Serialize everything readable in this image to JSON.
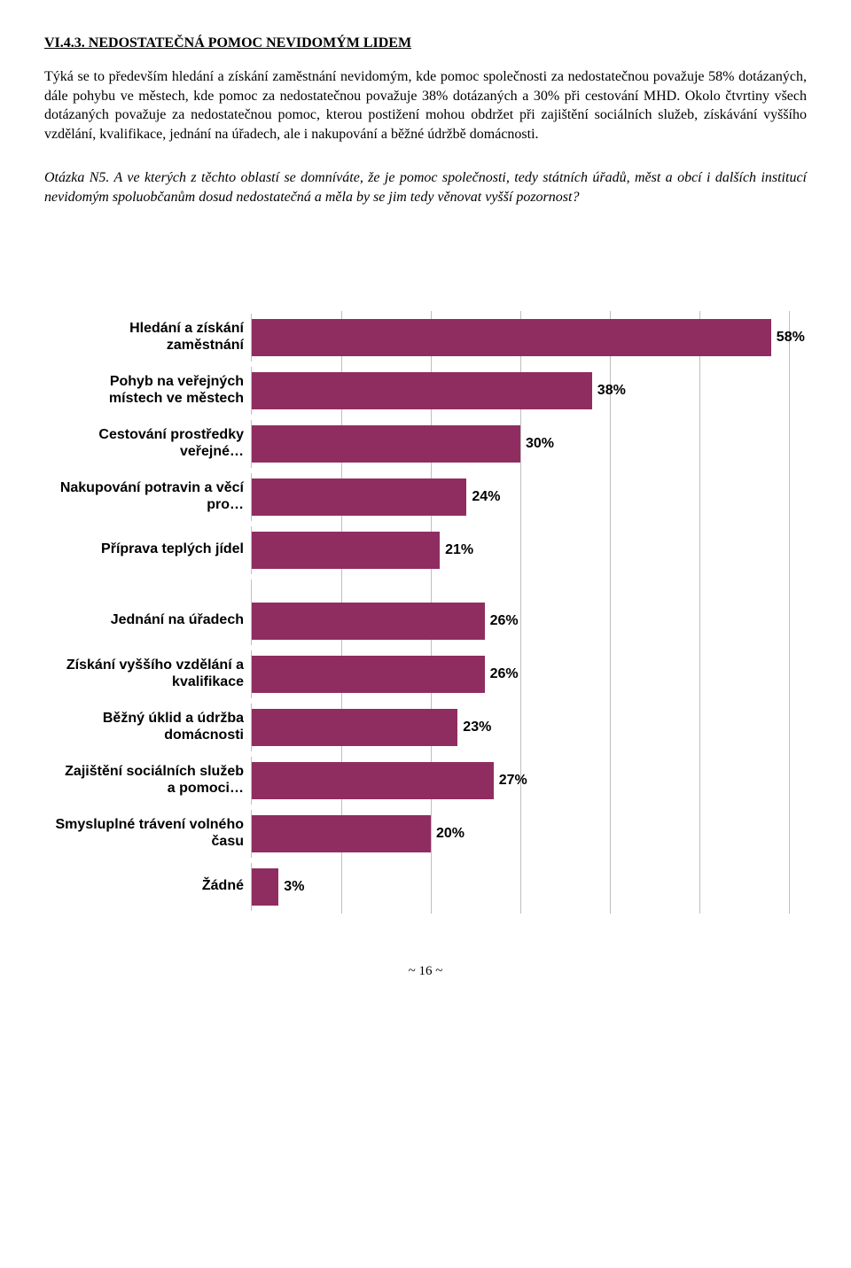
{
  "section": {
    "title": "VI.4.3. NEDOSTATEČNÁ POMOC NEVIDOMÝM LIDEM",
    "body": "Týká se to především hledání a získání zaměstnání nevidomým, kde pomoc společnosti za nedostatečnou považuje 58% dotázaných, dále pohybu ve městech, kde pomoc za nedostatečnou považuje 38% dotázaných a 30% při cestování MHD. Okolo čtvrtiny všech dotázaných považuje za nedostatečnou pomoc, kterou postižení mohou obdržet při zajištění sociálních služeb, získávání vyššího vzdělání, kvalifikace, jednání na úřadech, ale i nakupování a běžné údržbě domácnosti.",
    "question": "Otázka N5. A ve kterých z těchto oblastí se domníváte, že je pomoc společnosti, tedy státních úřadů, měst a obcí i dalších institucí nevidomým spoluobčanům dosud nedostatečná a měla by se jim tedy věnovat vyšší pozornost?"
  },
  "chart": {
    "type": "bar",
    "bar_color": "#8f2d61",
    "grid_color": "#bfbfbf",
    "background_color": "#ffffff",
    "label_fontsize": 16,
    "value_fontsize": 16,
    "xmax": 60,
    "xtick_step": 10,
    "groups": [
      [
        {
          "label": "Hledání a získání zaměstnání",
          "value": 58,
          "display": "58%"
        },
        {
          "label": "Pohyb na veřejných místech ve městech",
          "value": 38,
          "display": "38%"
        },
        {
          "label": "Cestování prostředky veřejné…",
          "value": 30,
          "display": "30%"
        },
        {
          "label": "Nakupování potravin a věcí pro…",
          "value": 24,
          "display": "24%"
        },
        {
          "label": "Příprava teplých jídel",
          "value": 21,
          "display": "21%"
        }
      ],
      [
        {
          "label": "Jednání na úřadech",
          "value": 26,
          "display": "26%"
        },
        {
          "label": "Získání vyššího vzdělání a kvalifikace",
          "value": 26,
          "display": "26%"
        },
        {
          "label": "Běžný úklid a údržba domácnosti",
          "value": 23,
          "display": "23%"
        },
        {
          "label": "Zajištění sociálních služeb a pomoci…",
          "value": 27,
          "display": "27%"
        },
        {
          "label": "Smysluplné trávení volného času",
          "value": 20,
          "display": "20%"
        },
        {
          "label": "Žádné",
          "value": 3,
          "display": "3%"
        }
      ]
    ]
  },
  "page_number": "~ 16 ~"
}
